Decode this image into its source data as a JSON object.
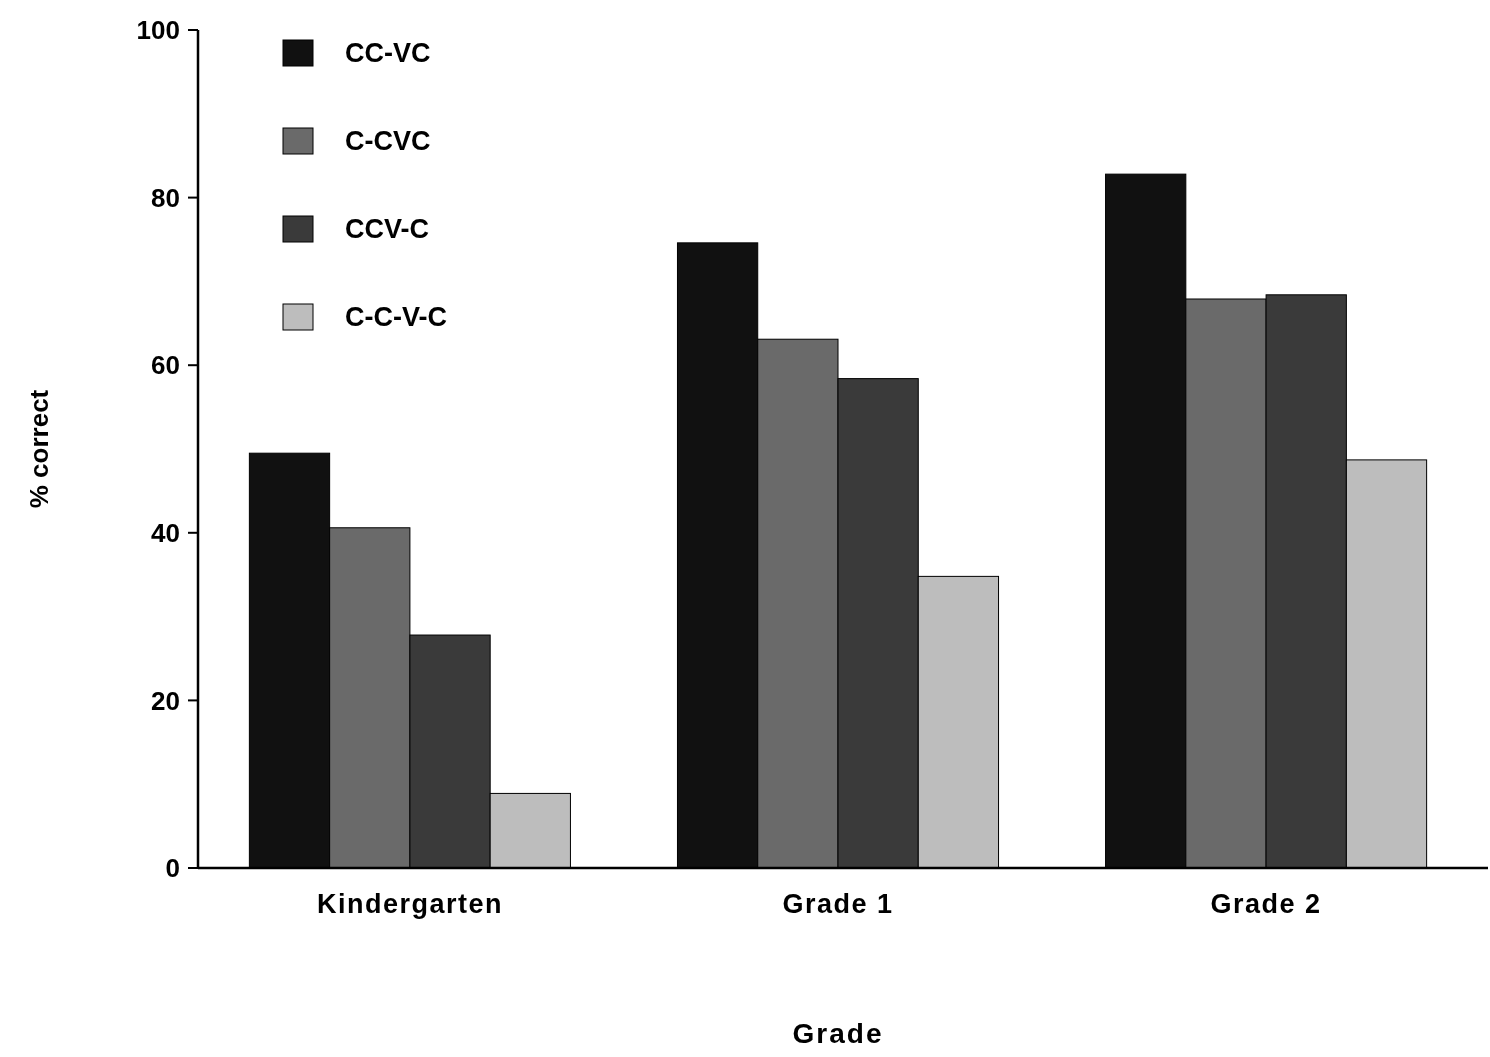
{
  "chart_data": {
    "type": "bar",
    "xlabel": "Grade",
    "ylabel": "% correct",
    "categories": [
      "Kindergarten",
      "Grade 1",
      "Grade 2"
    ],
    "series": [
      {
        "name": "CC-VC",
        "color": "#111111",
        "values": [
          49.5,
          74.6,
          82.8
        ]
      },
      {
        "name": "C-CVC",
        "color": "#6a6a6a",
        "values": [
          40.6,
          63.1,
          67.9
        ]
      },
      {
        "name": "CCV-C",
        "color": "#3a3a3a",
        "values": [
          27.8,
          58.4,
          68.4
        ]
      },
      {
        "name": "C-C-V-C",
        "color": "#bdbdbd",
        "values": [
          8.9,
          34.8,
          48.7
        ]
      }
    ],
    "ylim": [
      0,
      100
    ],
    "yticks": [
      0,
      20,
      40,
      60,
      80,
      100
    ],
    "grid": false,
    "legend": "top left"
  }
}
